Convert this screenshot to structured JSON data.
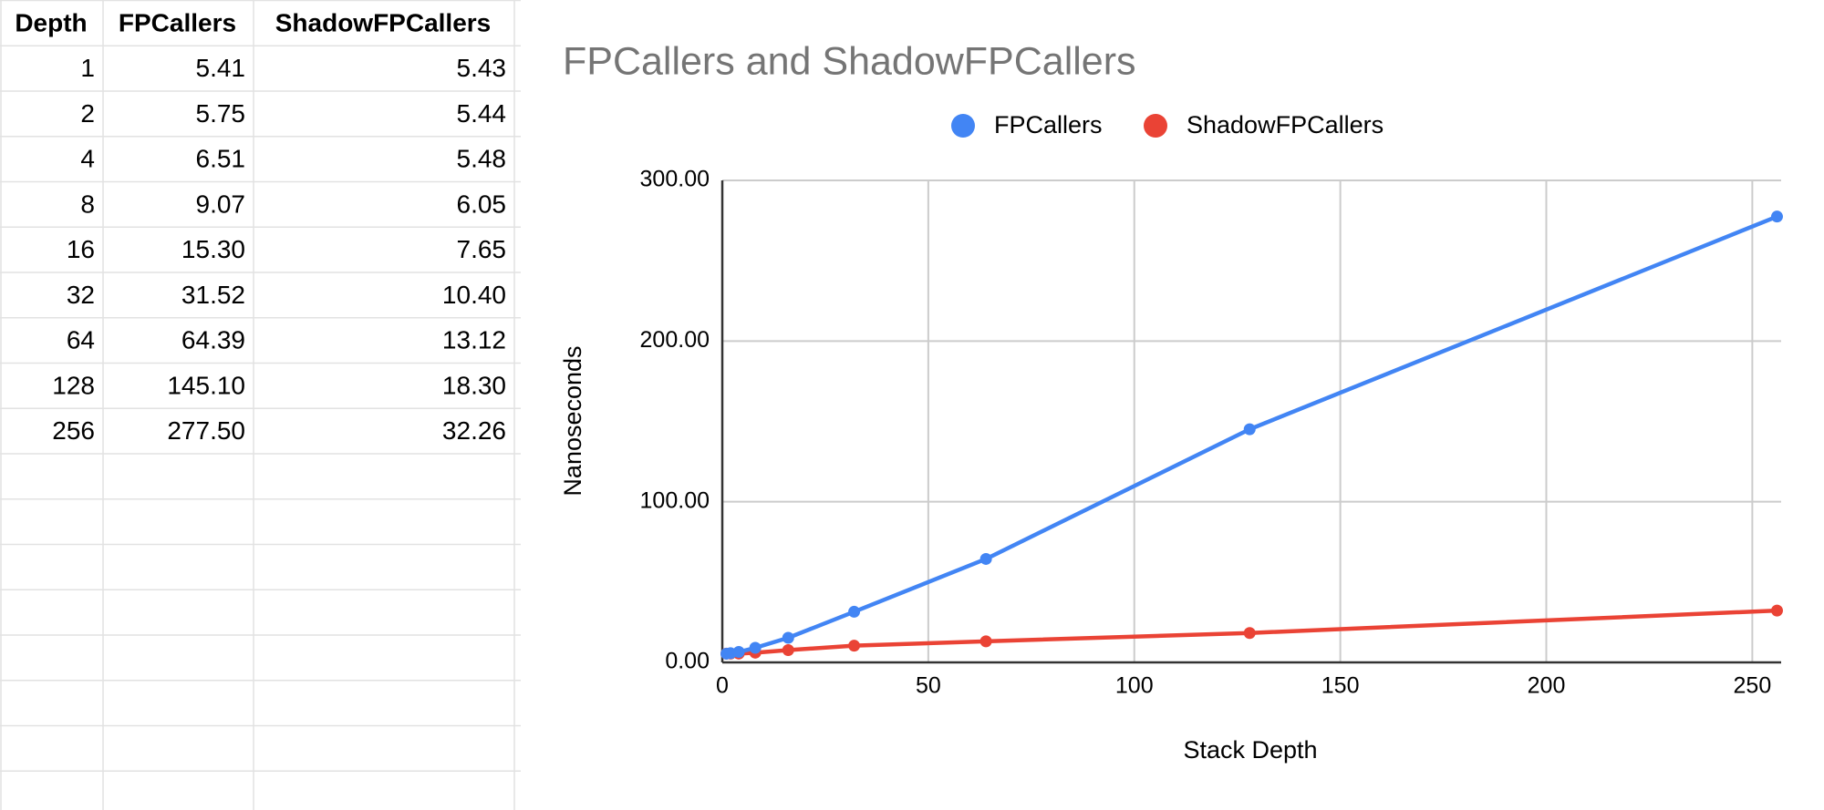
{
  "table": {
    "columns": [
      "Depth",
      "FPCallers",
      "ShadowFPCallers"
    ],
    "rows": [
      [
        "1",
        "5.41",
        "5.43"
      ],
      [
        "2",
        "5.75",
        "5.44"
      ],
      [
        "4",
        "6.51",
        "5.48"
      ],
      [
        "8",
        "9.07",
        "6.05"
      ],
      [
        "16",
        "15.30",
        "7.65"
      ],
      [
        "32",
        "31.52",
        "10.40"
      ],
      [
        "64",
        "64.39",
        "13.12"
      ],
      [
        "128",
        "145.10",
        "18.30"
      ],
      [
        "256",
        "277.50",
        "32.26"
      ]
    ]
  },
  "chart_data": {
    "type": "line",
    "title": "FPCallers and ShadowFPCallers",
    "x_label": "Stack Depth",
    "y_label": "Nanoseconds",
    "x": [
      1,
      2,
      4,
      8,
      16,
      32,
      64,
      128,
      256
    ],
    "series": [
      {
        "name": "FPCallers",
        "color": "#4285f4",
        "values": [
          5.41,
          5.75,
          6.51,
          9.07,
          15.3,
          31.52,
          64.39,
          145.1,
          277.5
        ]
      },
      {
        "name": "ShadowFPCallers",
        "color": "#ea4335",
        "values": [
          5.43,
          5.44,
          5.48,
          6.05,
          7.65,
          10.4,
          13.12,
          18.3,
          32.26
        ]
      }
    ],
    "xlim": [
      0,
      257
    ],
    "xticks": [
      0,
      50,
      100,
      150,
      200,
      250
    ],
    "ylim": [
      0,
      300
    ],
    "yticks": [
      {
        "value": 0,
        "label": "0.00"
      },
      {
        "value": 100,
        "label": "100.00"
      },
      {
        "value": 200,
        "label": "200.00"
      },
      {
        "value": 300,
        "label": "300.00"
      }
    ],
    "grid": true,
    "legend": "top"
  }
}
